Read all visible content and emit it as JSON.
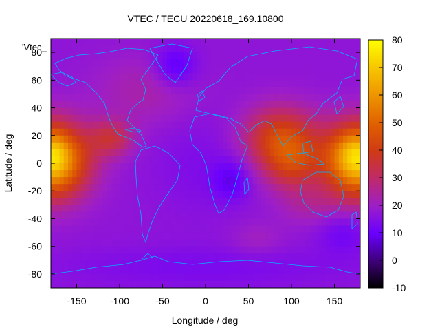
{
  "chart_data": {
    "type": "heatmap",
    "title": "VTEC / TECU 20220618_169.10800",
    "xlabel": "Longitude / deg",
    "ylabel": "Latitude / deg",
    "legend_key": "'Vtec_",
    "xlim": [
      -180,
      180
    ],
    "ylim": [
      -90,
      90
    ],
    "x_ticks": [
      -150,
      -100,
      -50,
      0,
      50,
      100,
      150
    ],
    "y_ticks": [
      -80,
      -60,
      -40,
      -20,
      0,
      20,
      40,
      60,
      80
    ],
    "colorbar": {
      "range": [
        -10,
        80
      ],
      "ticks": [
        -10,
        0,
        10,
        20,
        30,
        40,
        50,
        60,
        70,
        80
      ],
      "palette": "black-blue-purple-red-orange-yellow"
    },
    "grid": false,
    "background_level": 17,
    "blobs": [
      {
        "lon": 180,
        "lat": 2,
        "rlon": 42,
        "rlat": 26,
        "v": 52
      },
      {
        "lon": -180,
        "lat": 2,
        "rlon": 42,
        "rlat": 26,
        "v": 52
      },
      {
        "lon": 172,
        "lat": 8,
        "rlon": 18,
        "rlat": 15,
        "v": 8
      },
      {
        "lon": -175,
        "lat": 8,
        "rlon": 15,
        "rlat": 15,
        "v": 8
      },
      {
        "lon": 88,
        "lat": 18,
        "rlon": 42,
        "rlat": 22,
        "v": 26
      },
      {
        "lon": 100,
        "lat": -2,
        "rlon": 30,
        "rlat": 18,
        "v": 16
      },
      {
        "lon": -110,
        "lat": 18,
        "rlon": 25,
        "rlat": 13,
        "v": 16
      },
      {
        "lon": -70,
        "lat": 52,
        "rlon": 60,
        "rlat": 25,
        "v": 6
      },
      {
        "lon": -10,
        "lat": 0,
        "rlon": 50,
        "rlat": 38,
        "v": -3
      },
      {
        "lon": 30,
        "lat": -12,
        "rlon": 22,
        "rlat": 15,
        "v": -8
      },
      {
        "lon": -35,
        "lat": 70,
        "rlon": 25,
        "rlat": 15,
        "v": -10
      },
      {
        "lon": 160,
        "lat": -50,
        "rlon": 30,
        "rlat": 15,
        "v": -6
      },
      {
        "lon": 0,
        "lat": -75,
        "rlon": 180,
        "rlat": 15,
        "v": -4
      },
      {
        "lon": 60,
        "lat": -55,
        "rlon": 30,
        "rlat": 12,
        "v": 4
      },
      {
        "lon": 120,
        "lat": -30,
        "rlon": 35,
        "rlat": 15,
        "v": 6
      }
    ]
  }
}
